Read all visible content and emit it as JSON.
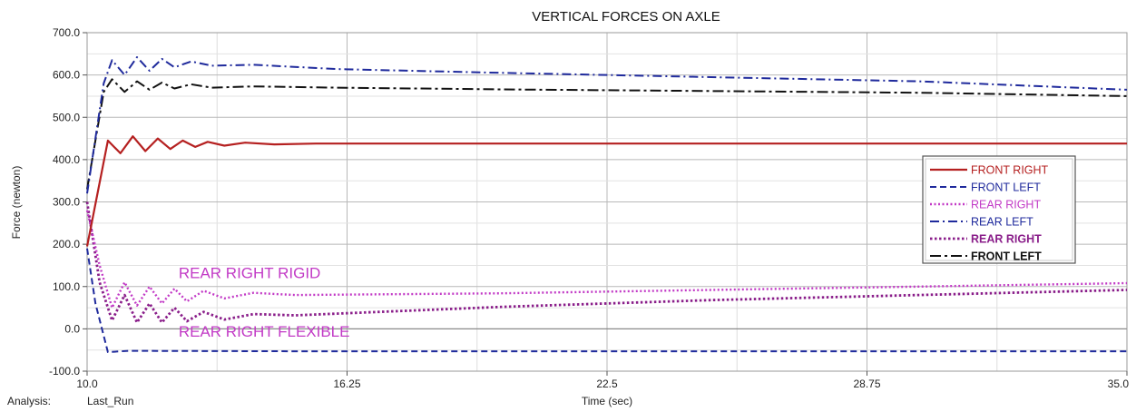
{
  "chart_data": {
    "type": "line",
    "title": "VERTICAL FORCES ON AXLE",
    "xlabel": "Time (sec)",
    "ylabel": "Force (newton)",
    "xlim": [
      10.0,
      35.0
    ],
    "ylim": [
      -100.0,
      700.0
    ],
    "x_ticks": [
      "10.0",
      "16.25",
      "22.5",
      "28.75",
      "35.0"
    ],
    "x_tick_values": [
      10.0,
      16.25,
      22.5,
      28.75,
      35.0
    ],
    "y_ticks": [
      "700.0",
      "600.0",
      "500.0",
      "400.0",
      "300.0",
      "200.0",
      "100.0",
      "0.0",
      "-100.0"
    ],
    "y_tick_values": [
      700,
      600,
      500,
      400,
      300,
      200,
      100,
      0,
      -100
    ],
    "grid": true,
    "legend_position": "right",
    "series": [
      {
        "name": "FRONT RIGHT",
        "color": "#b52020",
        "dash": "solid",
        "points": [
          [
            10.0,
            195
          ],
          [
            10.5,
            445
          ],
          [
            10.8,
            415
          ],
          [
            11.1,
            455
          ],
          [
            11.4,
            420
          ],
          [
            11.7,
            450
          ],
          [
            12.0,
            425
          ],
          [
            12.3,
            445
          ],
          [
            12.6,
            430
          ],
          [
            12.9,
            442
          ],
          [
            13.3,
            433
          ],
          [
            13.8,
            440
          ],
          [
            14.5,
            436
          ],
          [
            15.5,
            438
          ],
          [
            20.0,
            438
          ],
          [
            35.0,
            438
          ]
        ]
      },
      {
        "name": "FRONT LEFT",
        "color": "#1f2a9c",
        "dash": "dashed",
        "points": [
          [
            10.0,
            190
          ],
          [
            10.2,
            60
          ],
          [
            10.5,
            -55
          ],
          [
            11.0,
            -52
          ],
          [
            15.0,
            -53
          ],
          [
            25.0,
            -53
          ],
          [
            35.0,
            -53
          ]
        ]
      },
      {
        "name": "REAR RIGHT",
        "color": "#c23ac6",
        "dash": "dotted",
        "points": [
          [
            10.0,
            280
          ],
          [
            10.3,
            150
          ],
          [
            10.6,
            50
          ],
          [
            10.9,
            110
          ],
          [
            11.2,
            55
          ],
          [
            11.5,
            100
          ],
          [
            11.8,
            60
          ],
          [
            12.1,
            95
          ],
          [
            12.4,
            65
          ],
          [
            12.8,
            90
          ],
          [
            13.3,
            72
          ],
          [
            14.0,
            85
          ],
          [
            15.0,
            80
          ],
          [
            20.0,
            84
          ],
          [
            25.0,
            92
          ],
          [
            30.0,
            100
          ],
          [
            35.0,
            108
          ]
        ]
      },
      {
        "name": "REAR LEFT",
        "color": "#1f2a9c",
        "dash": "dashdot",
        "points": [
          [
            10.0,
            320
          ],
          [
            10.4,
            580
          ],
          [
            10.6,
            635
          ],
          [
            10.9,
            600
          ],
          [
            11.2,
            642
          ],
          [
            11.5,
            610
          ],
          [
            11.8,
            638
          ],
          [
            12.1,
            618
          ],
          [
            12.5,
            632
          ],
          [
            13.0,
            622
          ],
          [
            14.0,
            624
          ],
          [
            16.0,
            614
          ],
          [
            20.0,
            605
          ],
          [
            25.0,
            595
          ],
          [
            30.0,
            585
          ],
          [
            35.0,
            565
          ]
        ]
      },
      {
        "name": "REAR RIGHT",
        "color": "#8a1e8a",
        "dash": "dotted-heavy",
        "points": [
          [
            10.0,
            300
          ],
          [
            10.3,
            110
          ],
          [
            10.6,
            20
          ],
          [
            10.9,
            80
          ],
          [
            11.2,
            15
          ],
          [
            11.5,
            60
          ],
          [
            11.8,
            15
          ],
          [
            12.1,
            50
          ],
          [
            12.4,
            18
          ],
          [
            12.8,
            40
          ],
          [
            13.3,
            22
          ],
          [
            14.0,
            35
          ],
          [
            15.0,
            32
          ],
          [
            20.0,
            52
          ],
          [
            25.0,
            68
          ],
          [
            30.0,
            80
          ],
          [
            35.0,
            92
          ]
        ]
      },
      {
        "name": "FRONT LEFT",
        "color": "#111111",
        "dash": "dashdot-heavy",
        "points": [
          [
            10.0,
            330
          ],
          [
            10.4,
            560
          ],
          [
            10.6,
            590
          ],
          [
            10.9,
            560
          ],
          [
            11.2,
            585
          ],
          [
            11.5,
            565
          ],
          [
            11.8,
            582
          ],
          [
            12.1,
            568
          ],
          [
            12.5,
            578
          ],
          [
            13.0,
            570
          ],
          [
            14.0,
            573
          ],
          [
            16.0,
            570
          ],
          [
            20.0,
            566
          ],
          [
            25.0,
            562
          ],
          [
            30.0,
            558
          ],
          [
            35.0,
            550
          ]
        ]
      }
    ],
    "annotations": [
      {
        "text": "REAR RIGHT RIGID",
        "x": 12.2,
        "y": 120
      },
      {
        "text": "REAR RIGHT FLEXIBLE",
        "x": 12.2,
        "y": -18
      }
    ]
  },
  "footer": {
    "analysis_label": "Analysis:",
    "analysis_value": "Last_Run"
  }
}
